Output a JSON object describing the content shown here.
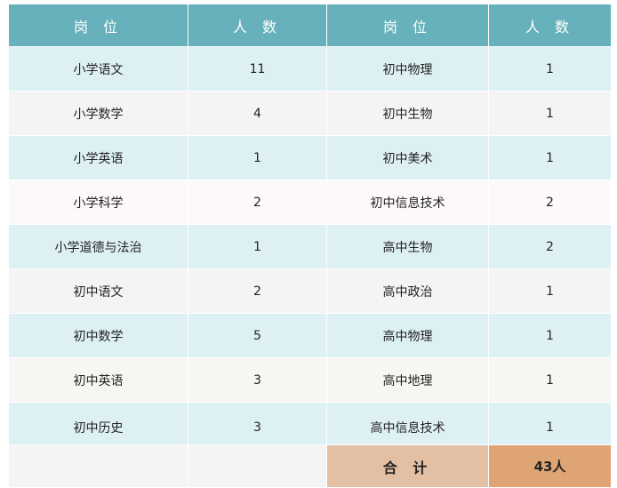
{
  "header": [
    "岗 位",
    "人 数",
    "岗 位",
    "人 数"
  ],
  "rows": [
    [
      "小学语文",
      "11",
      "初中物理",
      "1"
    ],
    [
      "小学数学",
      "4",
      "初中生物",
      "1"
    ],
    [
      "小学英语",
      "1",
      "初中美术",
      "1"
    ],
    [
      "小学科学",
      "2",
      "初中信息技术",
      "2"
    ],
    [
      "小学道德与法治",
      "1",
      "高中生物",
      "2"
    ],
    [
      "初中语文",
      "2",
      "高中政治",
      "1"
    ],
    [
      "初中数学",
      "5",
      "高中物理",
      "1"
    ],
    [
      "初中英语",
      "3",
      "高中地理",
      "1"
    ],
    [
      "初中历史",
      "3",
      "高中信息技术",
      "1"
    ]
  ],
  "total": {
    "label": "合 计",
    "value": "43人"
  },
  "colors": {
    "header": "#66b1bb",
    "row_blue": "#ddf0f4",
    "row_gray": "#f4f4f4",
    "total_label": "#e3c0a4",
    "total_value": "#dea474"
  }
}
